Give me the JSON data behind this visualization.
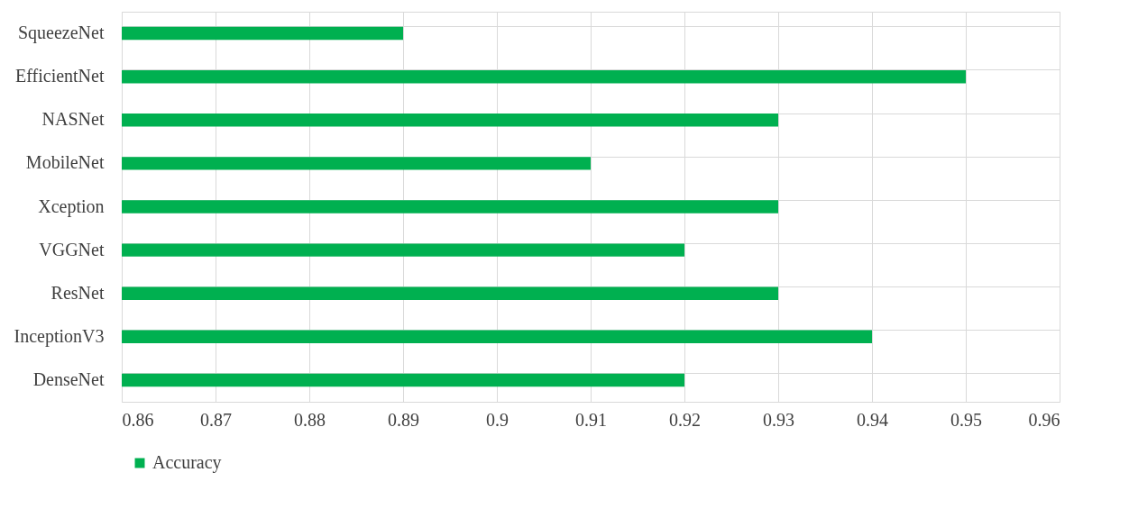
{
  "chart_data": {
    "type": "bar",
    "orientation": "horizontal",
    "categories": [
      "SqueezeNet",
      "EfficientNet",
      "NASNet",
      "MobileNet",
      "Xception",
      "VGGNet",
      "ResNet",
      "InceptionV3",
      "DenseNet"
    ],
    "series": [
      {
        "name": "Accuracy",
        "color": "#00b050",
        "values": [
          0.89,
          0.95,
          0.93,
          0.91,
          0.93,
          0.92,
          0.93,
          0.94,
          0.92
        ]
      }
    ],
    "xlim": [
      0.86,
      0.96
    ],
    "xticks": [
      0.86,
      0.87,
      0.88,
      0.89,
      0.9,
      0.91,
      0.92,
      0.93,
      0.94,
      0.95,
      0.96
    ],
    "grid": true,
    "legend": "bottom"
  }
}
